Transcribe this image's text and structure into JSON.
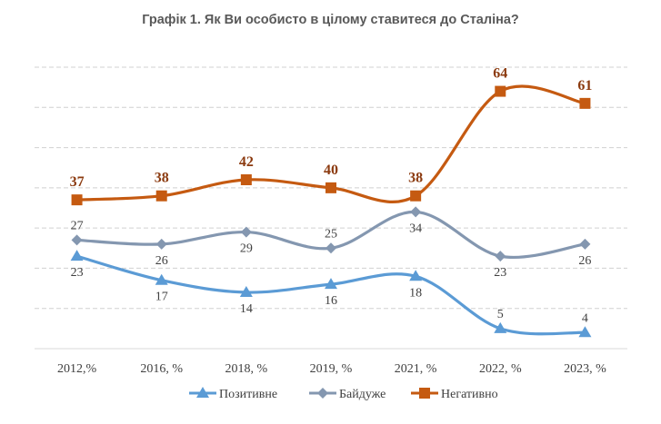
{
  "chart_data": {
    "type": "line",
    "title": "Графік 1. Як Ви особисто в цілому ставитеся до Сталіна?",
    "xlabel": "",
    "ylabel": "",
    "categories": [
      "2012,%",
      "2016, %",
      "2018, %",
      "2019, %",
      "2021, %",
      "2022, %",
      "2023, %"
    ],
    "ylim": [
      0,
      70
    ],
    "grid": true,
    "y_axis_labels_shown": false,
    "legend_position": "bottom",
    "smooth": true,
    "series": [
      {
        "name": "Позитивне",
        "color": "#5B9BD5",
        "marker": "triangle",
        "values": [
          23,
          17,
          14,
          16,
          18,
          5,
          4
        ],
        "label_position": [
          "below",
          "below",
          "below",
          "below",
          "below",
          "above",
          "above"
        ]
      },
      {
        "name": "Байдуже",
        "color": "#8497B0",
        "marker": "diamond",
        "values": [
          27,
          26,
          29,
          25,
          34,
          23,
          26
        ],
        "label_position": [
          "above",
          "below",
          "below",
          "above",
          "below",
          "below",
          "below"
        ]
      },
      {
        "name": "Негативно",
        "color": "#C55A11",
        "marker": "square",
        "values": [
          37,
          38,
          42,
          40,
          38,
          64,
          61
        ],
        "label_position": [
          "above",
          "above",
          "above",
          "above",
          "above",
          "above",
          "above"
        ],
        "label_color": "#8B3A0F",
        "label_bold": true
      }
    ]
  }
}
